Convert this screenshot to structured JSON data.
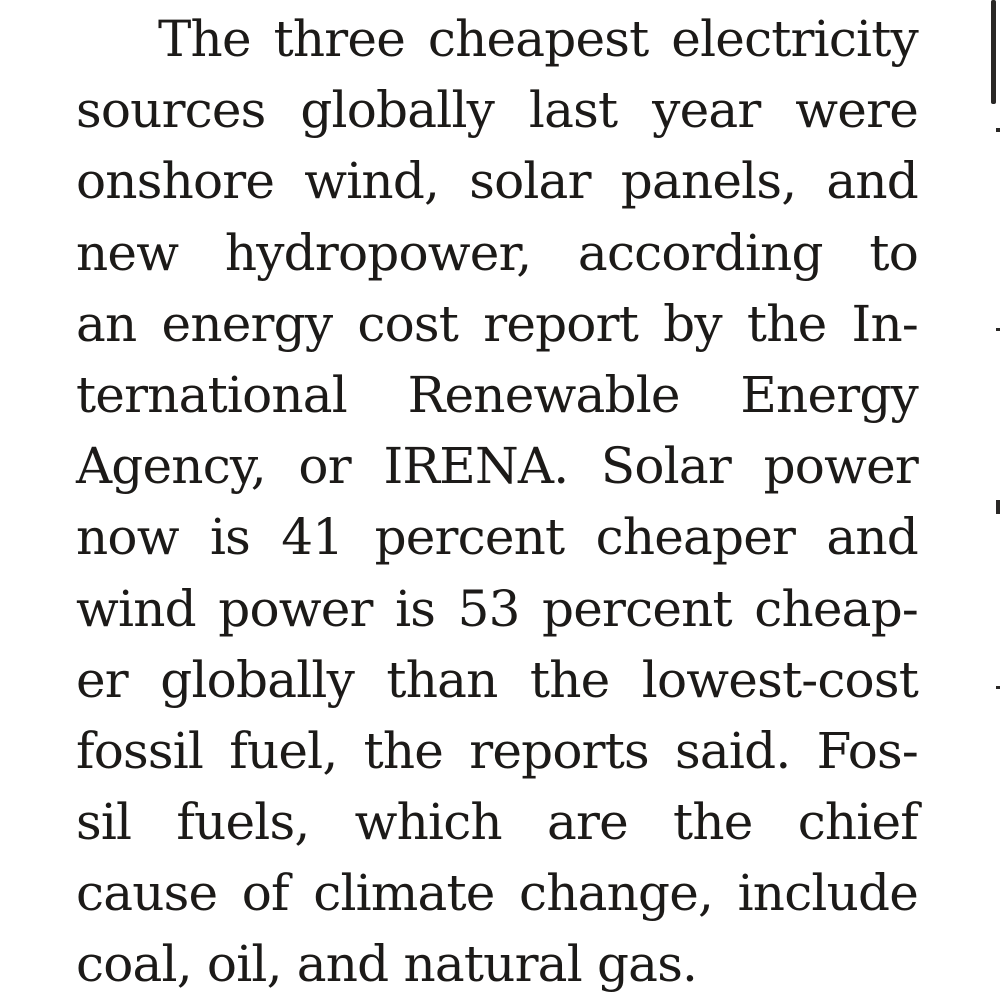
{
  "article": {
    "lines": [
      "The three cheapest electricity",
      "sources globally last year were",
      "onshore wind, solar panels, and",
      "new hydropower, according to",
      "an energy cost report by the In-",
      "ternational Renewable Energy",
      "Agency, or IRENA. Solar power",
      "now is 41 percent cheaper and",
      "wind power is 53 percent cheap-",
      "er globally than the lowest-cost",
      "fossil fuel, the reports said. Fos-",
      "sil fuels, which are the chief",
      "cause of climate change, include",
      "coal, oil, and natural gas."
    ]
  },
  "colors": {
    "text": "#1c1a18",
    "background": "#ffffff"
  }
}
